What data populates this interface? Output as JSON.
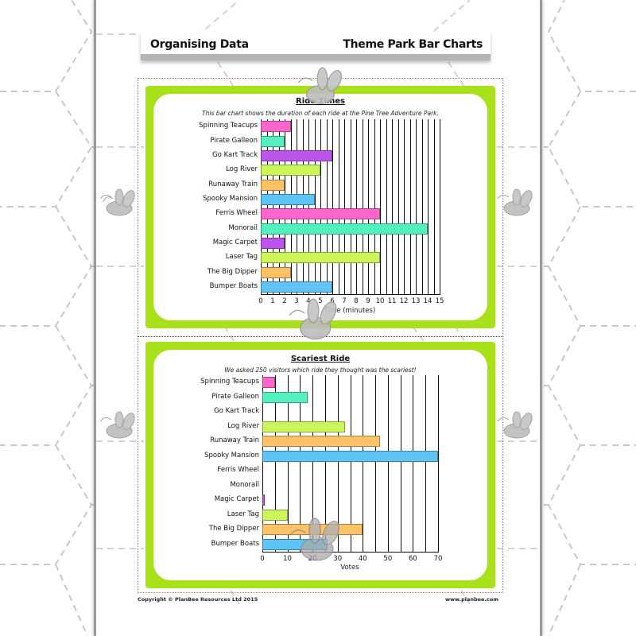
{
  "header": {
    "left_title": "Organising Data",
    "right_title": "Theme Park Bar Charts"
  },
  "footer": {
    "copyright": "Copyright © PlanBee Resources Ltd 2015",
    "website": "www.planbee.com"
  },
  "colors": {
    "card_green": "#a8e01c",
    "pink": "#ff66cc",
    "teal": "#55f0c0",
    "purple": "#bb55ee",
    "lime": "#ccf55a",
    "orange": "#ffc266",
    "blue": "#5ec4f5"
  },
  "chart_data": [
    {
      "type": "bar",
      "orientation": "horizontal",
      "title": "Ride Times",
      "subtitle": "This bar chart shows the duration of each ride at the Pine Tree Adventure Park.",
      "xlabel": "Time (minutes)",
      "ylabel": "",
      "xlim": [
        0,
        15
      ],
      "xticks": [
        "0",
        "1",
        "2",
        "3",
        "4",
        "5",
        "6",
        "7",
        "8",
        "9",
        "10",
        "11",
        "12",
        "13",
        "14",
        "15"
      ],
      "grid": "vertical, every 0.5",
      "categories": [
        "Spinning Teacups",
        "Pirate Galleon",
        "Go Kart Track",
        "Log River",
        "Runaway Train",
        "Spooky Mansion",
        "Ferris Wheel",
        "Monorail",
        "Magic Carpet",
        "Laser Tag",
        "The Big Dipper",
        "Bumper Boats"
      ],
      "values": [
        2.5,
        2,
        6,
        5,
        2,
        4.5,
        10,
        14,
        2,
        10,
        2.5,
        6
      ],
      "bar_colors": [
        "#ff66cc",
        "#55f0c0",
        "#bb55ee",
        "#ccf55a",
        "#ffc266",
        "#5ec4f5",
        "#ff66cc",
        "#55f0c0",
        "#bb55ee",
        "#ccf55a",
        "#ffc266",
        "#5ec4f5"
      ]
    },
    {
      "type": "bar",
      "orientation": "horizontal",
      "title": "Scariest Ride",
      "subtitle": "We asked 250 visitors which ride they thought was the scariest!",
      "xlabel": "Votes",
      "ylabel": "",
      "xlim": [
        0,
        70
      ],
      "xticks": [
        "0",
        "10",
        "20",
        "30",
        "40",
        "50",
        "60",
        "70"
      ],
      "grid": "vertical, every 5",
      "categories": [
        "Spinning Teacups",
        "Pirate Galleon",
        "Go Kart Track",
        "Log River",
        "Runaway Train",
        "Spooky Mansion",
        "Ferris Wheel",
        "Monorail",
        "Magic Carpet",
        "Laser Tag",
        "The Big Dipper",
        "Bumper Boats"
      ],
      "values": [
        5,
        18,
        0,
        33,
        47,
        70,
        0,
        0,
        1,
        10,
        40,
        26
      ],
      "bar_colors": [
        "#ff66cc",
        "#55f0c0",
        "#bb55ee",
        "#ccf55a",
        "#ffc266",
        "#5ec4f5",
        "#ff66cc",
        "#55f0c0",
        "#bb55ee",
        "#ccf55a",
        "#ffc266",
        "#5ec4f5"
      ]
    }
  ]
}
